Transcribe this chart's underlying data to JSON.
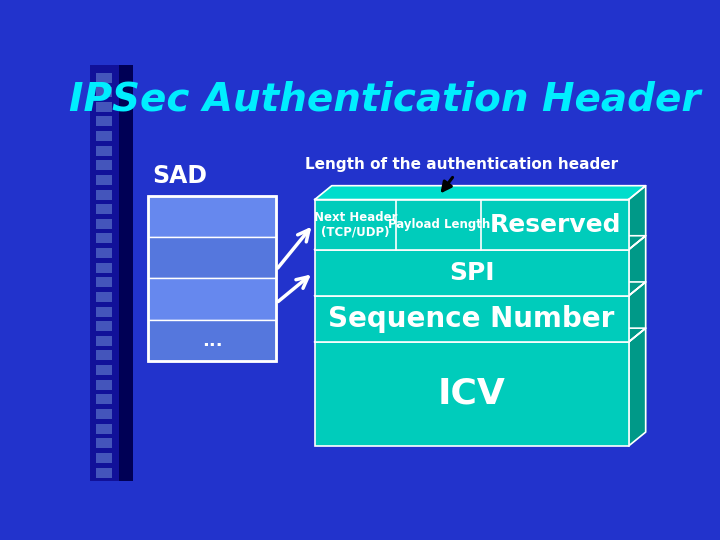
{
  "title": "IPSec Authentication Header",
  "title_color": "#00EEFF",
  "bg_color": "#2233CC",
  "bg_left_color": "#111188",
  "sad_label": "SAD",
  "sad_label_color": "white",
  "sad_row_colors": [
    "#6688EE",
    "#5577DD",
    "#6688EE",
    "#5577DD"
  ],
  "sad_dots": "...",
  "annotation_text": "Length of the authentication header",
  "teal_face": "#00CCBB",
  "teal_side": "#009988",
  "teal_top": "#00DDCC",
  "row1_col1": "Next Header\n(TCP/UDP)",
  "row1_col2": "Payload Length",
  "row1_col3": "Reserved",
  "row2": "SPI",
  "row3": "Sequence Number",
  "row4": "ICV"
}
